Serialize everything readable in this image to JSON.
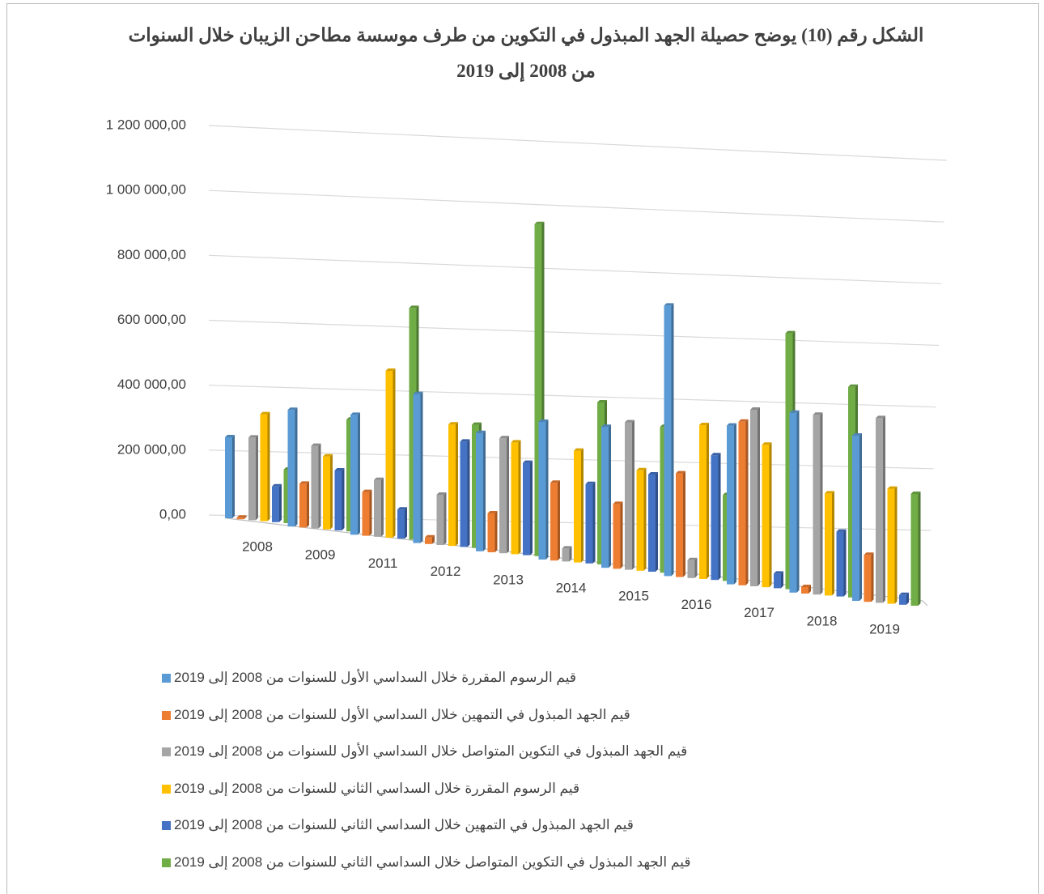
{
  "chart_data": {
    "type": "bar3d",
    "title": "الشكل رقم (10) يوضح حصيلة الجهد المبذول في التكوين من طرف موسسة مطاحن الزيبان خلال السنوات من 2008 إلى 2019",
    "categories": [
      "2008",
      "2009",
      "2011",
      "2012",
      "2013",
      "2014",
      "2015",
      "2016",
      "2017",
      "2018",
      "2019"
    ],
    "series": [
      {
        "name": "قيم الرسوم المقررة خلال السداسي الأول للسنوات من 2008 إلى 2019",
        "color": "#5b9bd5",
        "values": [
          250000,
          360000,
          370000,
          460000,
          365000,
          425000,
          435000,
          835000,
          490000,
          555000,
          510000
        ]
      },
      {
        "name": "قيم الجهد المبذول في التمهين خلال السداسي الأول للسنوات من 2008 إلى 2019",
        "color": "#ed7d31",
        "values": [
          5000,
          135000,
          135000,
          20000,
          120000,
          240000,
          200000,
          320000,
          505000,
          20000,
          145000
        ]
      },
      {
        "name": "قيم الجهد المبذول في التكوين المتواصل خلال السداسي الأول للسنوات من 2008 إلى 2019",
        "color": "#a5a5a5",
        "values": [
          255000,
          255000,
          175000,
          155000,
          355000,
          40000,
          455000,
          55000,
          545000,
          555000,
          570000
        ]
      },
      {
        "name": "قيم الرسوم المقررة خلال السداسي الثاني للسنوات من 2008 إلى 2019",
        "color": "#ffc000",
        "values": [
          330000,
          225000,
          515000,
          375000,
          345000,
          345000,
          310000,
          475000,
          440000,
          315000,
          355000
        ]
      },
      {
        "name": "قيم الجهد المبذول في التمهين خلال السداسي الثاني للسنوات من 2008 إلى 2019",
        "color": "#4472c4",
        "values": [
          110000,
          185000,
          90000,
          325000,
          285000,
          245000,
          300000,
          385000,
          45000,
          200000,
          30000
        ]
      },
      {
        "name": "قيم الجهد المبذول في التكوين المتواصل خلال السداسي الثاني للسنوات من 2008 إلى 2019",
        "color": "#70ad47",
        "values": [
          165000,
          345000,
          715000,
          380000,
          1025000,
          500000,
          450000,
          265000,
          790000,
          650000,
          345000
        ]
      }
    ],
    "ylim": [
      0,
      1200000
    ],
    "yticks": [
      {
        "value": 0,
        "label": "0,00"
      },
      {
        "value": 200000,
        "label": "200 000,00"
      },
      {
        "value": 400000,
        "label": "400 000,00"
      },
      {
        "value": 600000,
        "label": "600 000,00"
      },
      {
        "value": 800000,
        "label": "800 000,00"
      },
      {
        "value": 1000000,
        "label": "1 000 000,00"
      },
      {
        "value": 1200000,
        "label": "1 200 000,00"
      }
    ],
    "grid": true,
    "legend": "bottom"
  }
}
